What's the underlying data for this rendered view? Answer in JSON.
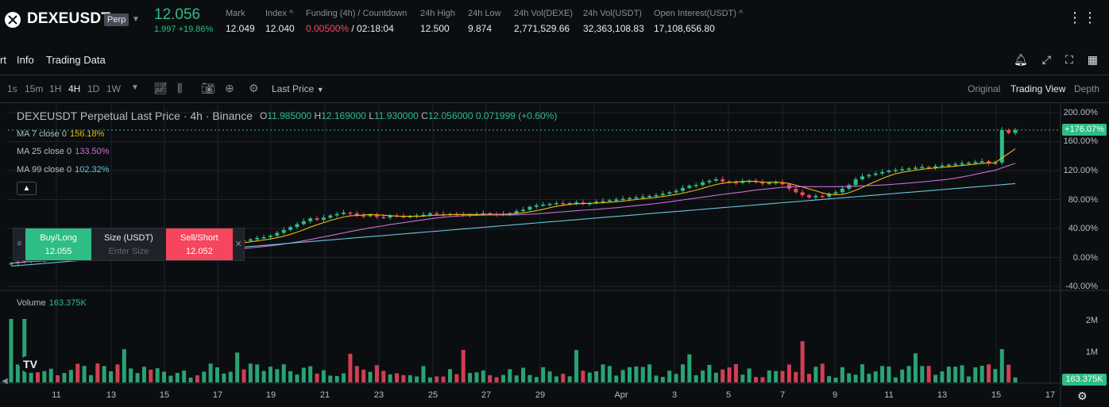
{
  "ticker": {
    "symbol": "DEXEUSDT",
    "badge": "Perp",
    "last_price": "12.056",
    "change": "1.997 +19.86%",
    "stats": [
      {
        "label": "Mark",
        "value": "12.049"
      },
      {
        "label": "Index ^",
        "value": "12.040"
      },
      {
        "label": "Funding (4h) / Countdown",
        "value_red": "0.00500%",
        "value": "/ 02:18:04"
      },
      {
        "label": "24h High",
        "value": "12.500"
      },
      {
        "label": "24h Low",
        "value": "9.874"
      },
      {
        "label": "24h Vol(DEXE)",
        "value": "2,771,529.66"
      },
      {
        "label": "24h Vol(USDT)",
        "value": "32,363,108.83"
      },
      {
        "label": "Open Interest(USDT) ^",
        "value": "17,108,656.80"
      }
    ],
    "more_icon": "more-icon"
  },
  "chart_tabs": [
    "rt",
    "Info",
    "Trading Data"
  ],
  "toolbar": {
    "timeframes": [
      "1s",
      "15m",
      "1H",
      "4H",
      "1D",
      "1W"
    ],
    "active_timeframe": "4H",
    "price_type": "Last Price",
    "views": [
      "Original",
      "Trading View",
      "Depth"
    ],
    "active_view": "Trading View"
  },
  "legend": {
    "title": "DEXEUSDT Perpetual Last Price · 4h · Binance",
    "ohlc": {
      "o": "11.985000",
      "h": "12.169000",
      "l": "11.930000",
      "c": "12.056000",
      "chg": "0.071999 (+0.60%)"
    },
    "ma": [
      {
        "label": "MA 7 close 0",
        "value": "156.18%",
        "color": "#f0b90b"
      },
      {
        "label": "MA 25 close 0",
        "value": "133.50%",
        "color": "#c86fd6"
      },
      {
        "label": "MA 99 close 0",
        "value": "102.32%",
        "color": "#68c6d8"
      }
    ],
    "volume_label": "Volume",
    "volume_value": "163.375K"
  },
  "trade_widget": {
    "buy_label": "Buy/Long",
    "buy_price": "12.055",
    "size_label": "Size (USDT)",
    "size_placeholder": "Enter Size",
    "sell_label": "Sell/Short",
    "sell_price": "12.052"
  },
  "price_axis": [
    "200.00%",
    "160.00%",
    "120.00%",
    "80.00%",
    "40.00%",
    "0.00%",
    "-40.00%"
  ],
  "current_tag": "+176.07%",
  "volume_axis": [
    "2M",
    "1M"
  ],
  "volume_tag": "163.375K",
  "x_axis": [
    "11",
    "13",
    "15",
    "17",
    "19",
    "21",
    "23",
    "25",
    "27",
    "29",
    "Apr",
    "3",
    "5",
    "7",
    "9",
    "11",
    "13",
    "15",
    "17"
  ],
  "colors": {
    "up": "#2ebd85",
    "down": "#f6465d",
    "bg": "#0b0e11",
    "grid": "#1e2329"
  },
  "chart_data": {
    "type": "candlestick",
    "unit": "percent change",
    "ylim": [
      -40,
      200
    ],
    "closes": [
      -8,
      -6,
      -5,
      -3,
      -4,
      -2,
      0,
      -1,
      1,
      2,
      1,
      3,
      4,
      3,
      5,
      6,
      5,
      7,
      8,
      9,
      10,
      9,
      11,
      12,
      13,
      14,
      15,
      16,
      15,
      17,
      18,
      19,
      20,
      22,
      24,
      23,
      25,
      27,
      28,
      30,
      34,
      38,
      42,
      46,
      50,
      54,
      52,
      55,
      58,
      60,
      62,
      61,
      58,
      57,
      59,
      56,
      55,
      58,
      57,
      56,
      57,
      58,
      59,
      61,
      60,
      59,
      60,
      59,
      58,
      59,
      60,
      61,
      60,
      59,
      60,
      61,
      64,
      66,
      70,
      72,
      73,
      74,
      75,
      74,
      75,
      76,
      74,
      75,
      77,
      78,
      79,
      80,
      81,
      82,
      83,
      84,
      85,
      86,
      88,
      90,
      92,
      96,
      99,
      100,
      104,
      106,
      108,
      105,
      104,
      103,
      105,
      106,
      104,
      102,
      103,
      104,
      101,
      95,
      90,
      86,
      83,
      85,
      84,
      88,
      90,
      95,
      100,
      108,
      112,
      114,
      116,
      118,
      120,
      121,
      122,
      123,
      124,
      125,
      124,
      126,
      127,
      128,
      129,
      130,
      131,
      132,
      133,
      130,
      131,
      176,
      172,
      176
    ],
    "ma_series": [
      "MA 7",
      "MA 25",
      "MA 99"
    ]
  }
}
